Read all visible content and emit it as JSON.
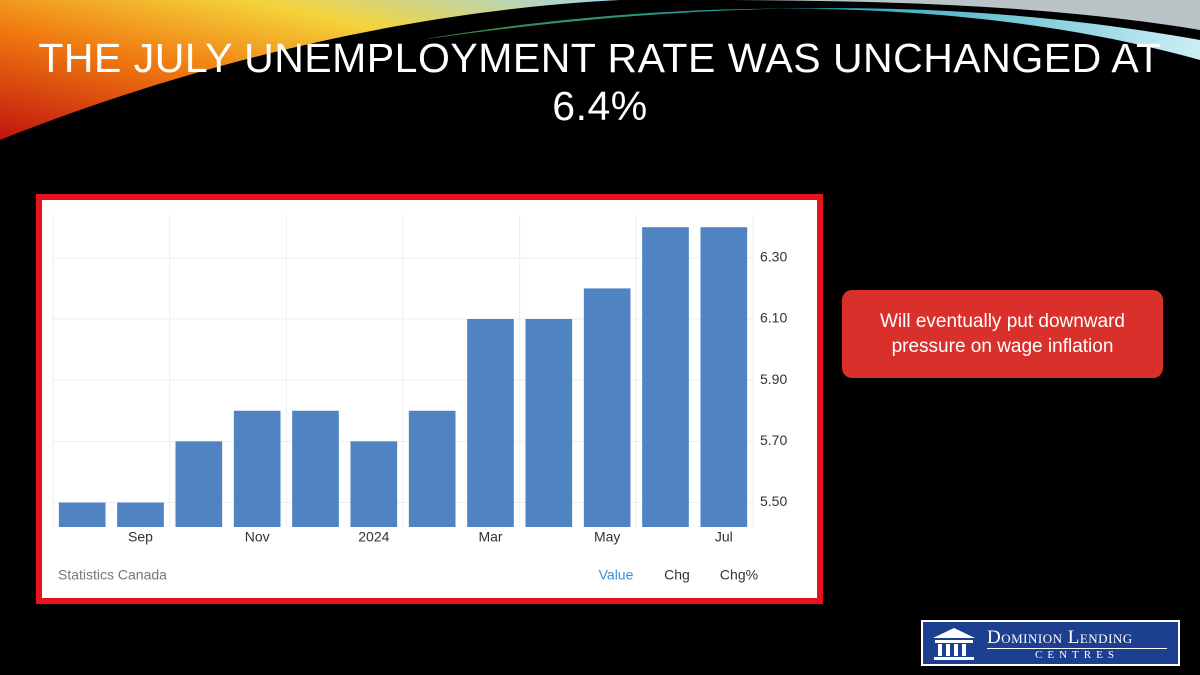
{
  "title": "THE JULY UNEMPLOYMENT RATE WAS UNCHANGED AT 6.4%",
  "annotation": "Will eventually put downward pressure on wage inflation",
  "source": "Statistics Canada",
  "tabs": [
    "Value",
    "Chg",
    "Chg%"
  ],
  "logo": {
    "name": "Dominion Lending",
    "sub": "Centres"
  },
  "chart_data": {
    "type": "bar",
    "categories": [
      null,
      "Sep",
      null,
      "Nov",
      null,
      "2024",
      null,
      "Mar",
      null,
      "May",
      null,
      "Jul"
    ],
    "values": [
      5.5,
      5.5,
      5.7,
      5.8,
      5.8,
      5.7,
      5.8,
      6.1,
      6.1,
      6.2,
      6.4,
      6.4
    ],
    "color": "#5083c1",
    "ylim": [
      5.42,
      6.44
    ],
    "yticks": [
      {
        "value": 5.5,
        "label": "5.50"
      },
      {
        "value": 5.7,
        "label": "5.70"
      },
      {
        "value": 5.9,
        "label": "5.90"
      },
      {
        "value": 6.1,
        "label": "6.10"
      },
      {
        "value": 6.3,
        "label": "6.30"
      }
    ],
    "grid": true
  }
}
